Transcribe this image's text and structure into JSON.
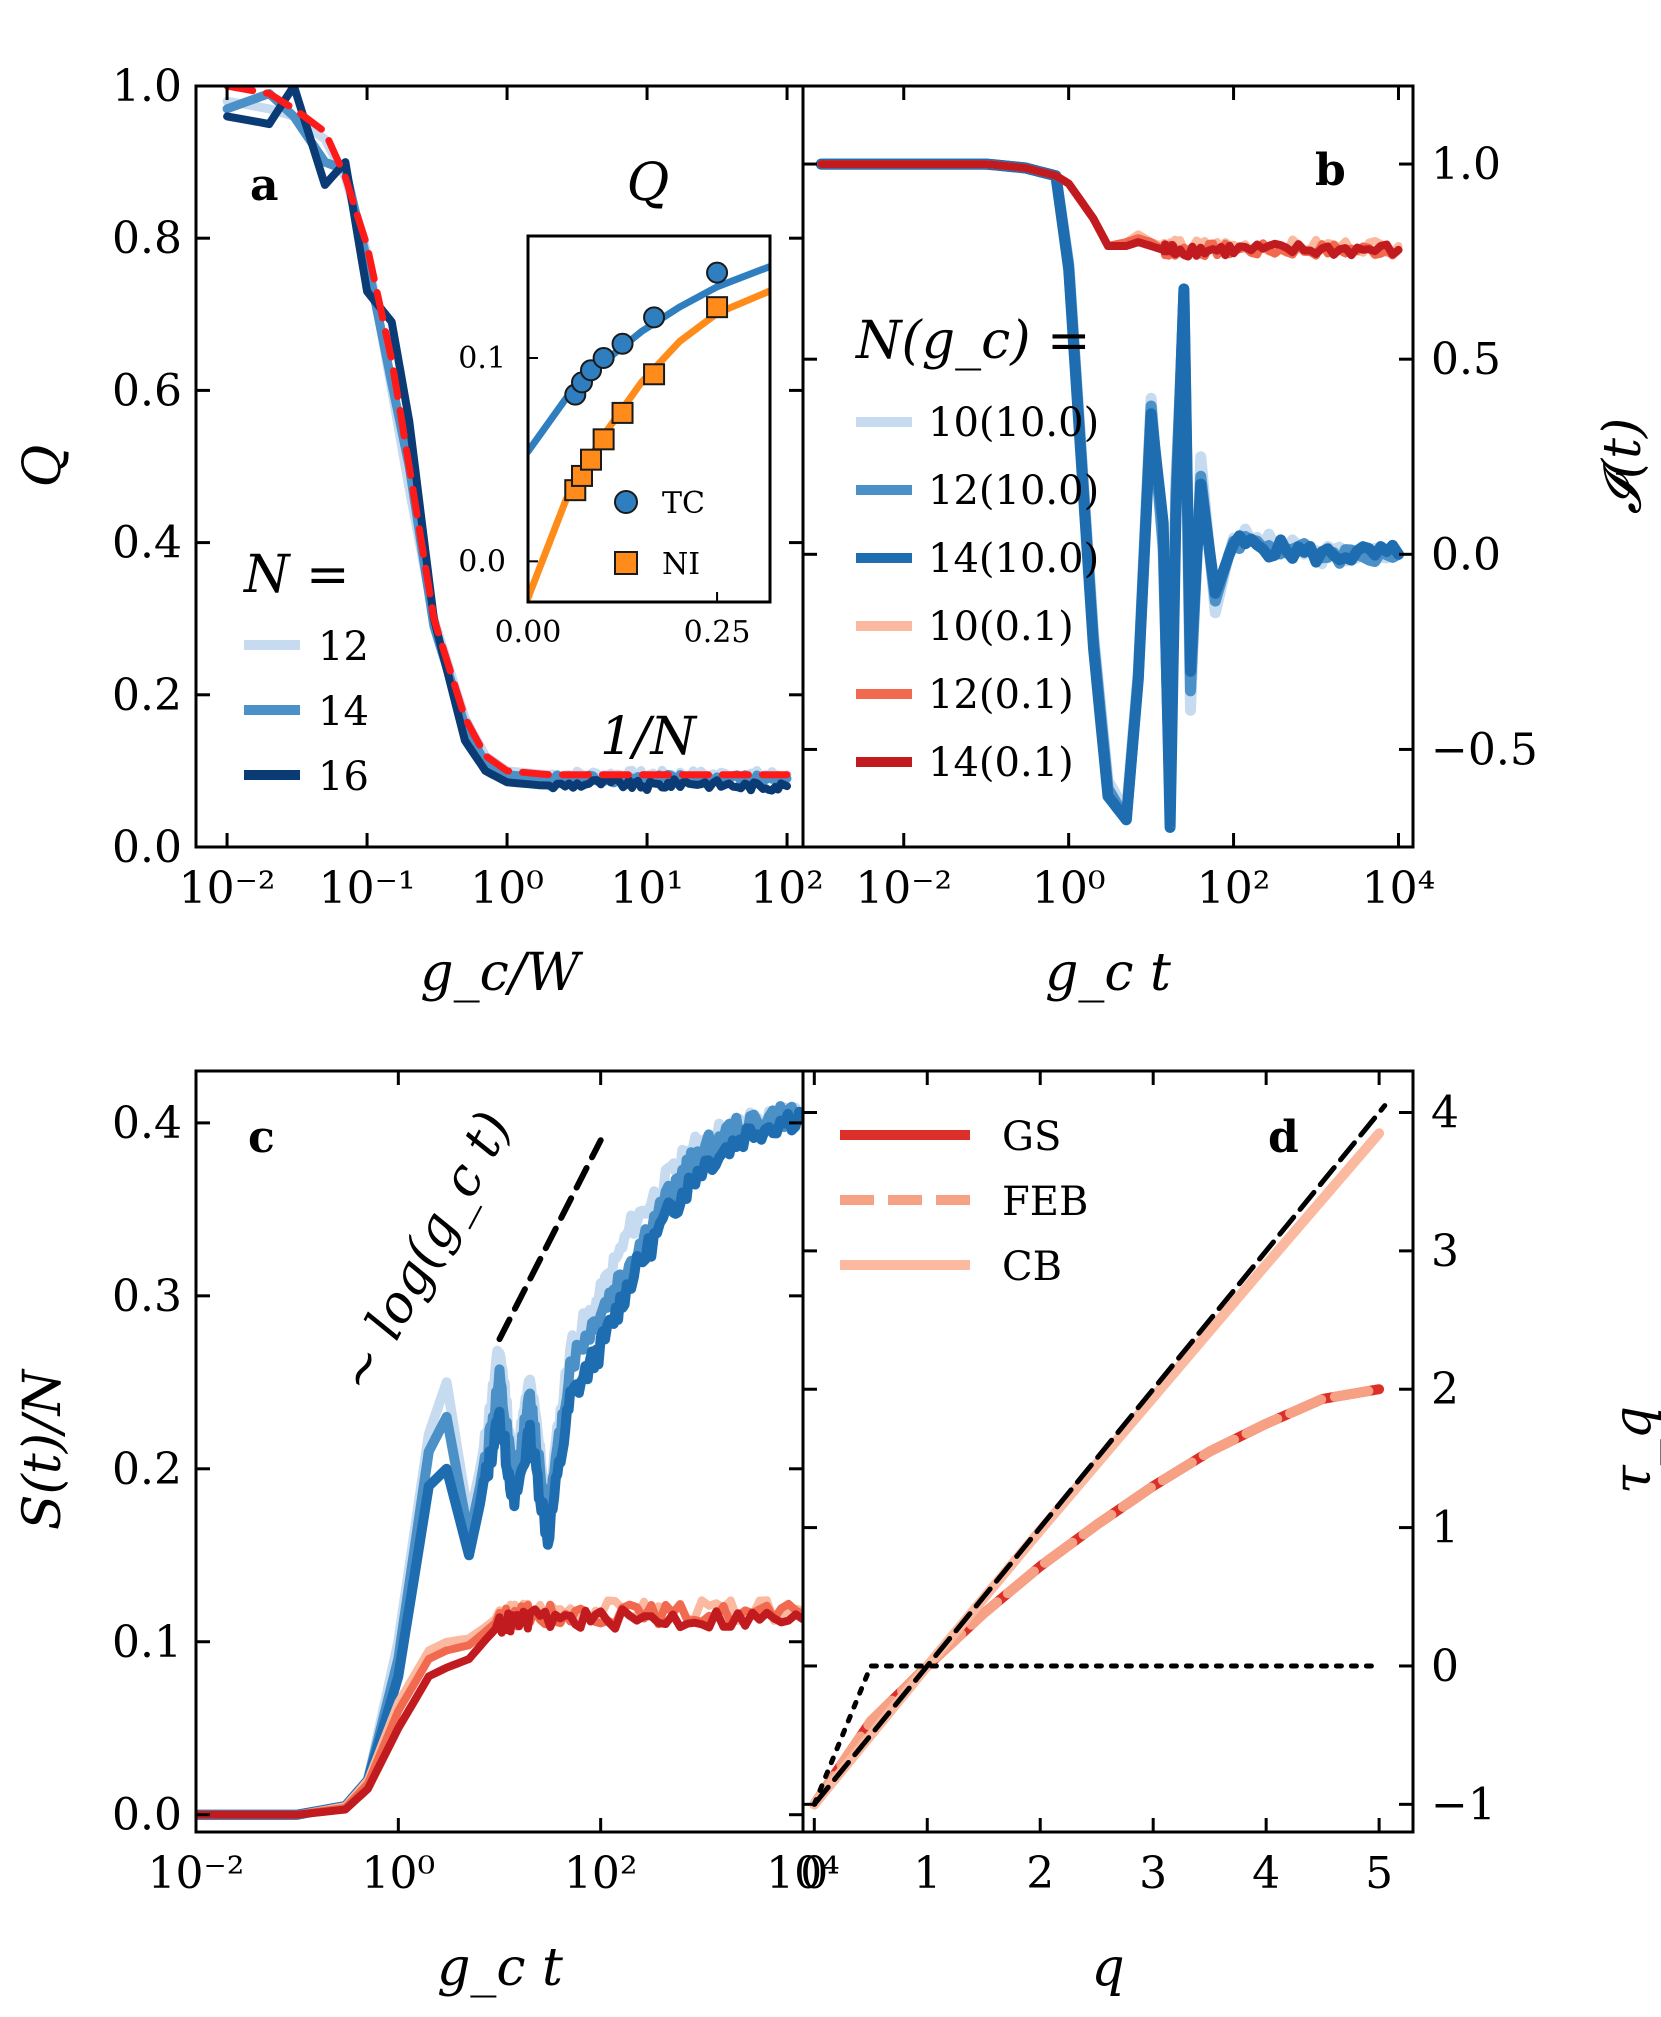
{
  "colors": {
    "blue_light": "#c6dbef",
    "blue_mid": "#4b91c7",
    "blue_dark": "#1f6db1",
    "navy": "#0b3b75",
    "red_dashed": "#ff1a1a",
    "peach": "#fbb9a0",
    "salmon": "#f1694f",
    "dark_red": "#c21b1f",
    "ni_orange": "#ff8c1a",
    "tc_blue": "#2f7fc0",
    "gs_red": "#dc2f2a",
    "feb_peach": "#f7a184",
    "black": "#000000"
  },
  "panels": {
    "a": {
      "letter": "a",
      "xlabel": "g_c/W",
      "ylabel": "Q",
      "xticks": [
        "10⁻²",
        "10⁻¹",
        "10⁰",
        "10¹",
        "10²"
      ],
      "yticks": [
        "0.0",
        "0.2",
        "0.4",
        "0.6",
        "0.8",
        "1.0"
      ],
      "legend_title": "N =",
      "legend": [
        "12",
        "14",
        "16"
      ],
      "inset": {
        "title": "Q",
        "xlabel": "1/N",
        "xticks": [
          "0.00",
          "0.25"
        ],
        "yticks": [
          "0.0",
          "0.1"
        ],
        "legend": [
          "TC",
          "NI"
        ]
      }
    },
    "b": {
      "letter": "b",
      "xlabel": "g_c t",
      "ylabel": "𝓘(t)",
      "xticks": [
        "10⁻²",
        "10⁰",
        "10²",
        "10⁴"
      ],
      "yticks": [
        "−0.5",
        "0.0",
        "0.5",
        "1.0"
      ],
      "legend_title": "N(g_c) =",
      "legend": [
        "10(10.0)",
        "12(10.0)",
        "14(10.0)",
        "10(0.1)",
        "12(0.1)",
        "14(0.1)"
      ]
    },
    "c": {
      "letter": "c",
      "xlabel": "g_c t",
      "ylabel": "S(t)/N",
      "xticks": [
        "10⁻²",
        "10⁰",
        "10²",
        "10⁴"
      ],
      "yticks": [
        "0.0",
        "0.1",
        "0.2",
        "0.3",
        "0.4"
      ],
      "annotation": "∼ log(g_c t)"
    },
    "d": {
      "letter": "d",
      "xlabel": "q",
      "ylabel": "τ_q",
      "xticks": [
        "0",
        "1",
        "2",
        "3",
        "4",
        "5"
      ],
      "yticks": [
        "−1",
        "0",
        "1",
        "2",
        "3",
        "4"
      ],
      "legend": [
        "GS",
        "FEB",
        "CB"
      ]
    }
  },
  "chart_data": [
    {
      "panel": "a",
      "type": "line",
      "xscale": "log",
      "xlim": [
        0.006,
        130
      ],
      "ylim": [
        0.0,
        1.0
      ],
      "xlabel": "g_c/W",
      "ylabel": "Q",
      "x": [
        0.01,
        0.02,
        0.03,
        0.05,
        0.07,
        0.1,
        0.15,
        0.2,
        0.3,
        0.5,
        0.7,
        1.0,
        2.0,
        5.0,
        10.0,
        20.0,
        50.0,
        100.0
      ],
      "series": [
        {
          "name": "12",
          "values": [
            0.98,
            0.97,
            0.96,
            0.93,
            0.88,
            0.78,
            0.6,
            0.47,
            0.3,
            0.17,
            0.12,
            0.1,
            0.095,
            0.095,
            0.095,
            0.095,
            0.095,
            0.095
          ]
        },
        {
          "name": "14",
          "values": [
            0.97,
            0.99,
            0.96,
            0.9,
            0.89,
            0.77,
            0.61,
            0.5,
            0.29,
            0.16,
            0.11,
            0.095,
            0.09,
            0.09,
            0.09,
            0.09,
            0.09,
            0.09
          ]
        },
        {
          "name": "16",
          "values": [
            0.96,
            0.95,
            1.0,
            0.87,
            0.9,
            0.73,
            0.69,
            0.56,
            0.3,
            0.14,
            0.1,
            0.085,
            0.08,
            0.085,
            0.08,
            0.085,
            0.08,
            0.08
          ]
        },
        {
          "name": "",
          "values": [
            1.0,
            0.99,
            0.97,
            0.94,
            0.88,
            0.79,
            0.64,
            0.5,
            0.3,
            0.17,
            0.12,
            0.1,
            0.095,
            0.095,
            0.095,
            0.095,
            0.095,
            0.095
          ]
        }
      ],
      "inset": {
        "type": "scatter",
        "xlim": [
          0.0,
          0.32
        ],
        "ylim": [
          -0.02,
          0.16
        ],
        "xlabel": "1/N",
        "series": [
          {
            "name": "TC",
            "x": [
              0.0625,
              0.0714,
              0.0833,
              0.1,
              0.125,
              0.1667,
              0.25
            ],
            "y": [
              0.082,
              0.088,
              0.094,
              0.1,
              0.107,
              0.12,
              0.142
            ],
            "fit": {
              "x": [
                0.0,
                0.05,
                0.1,
                0.15,
                0.2,
                0.25,
                0.32
              ],
              "y": [
                0.054,
                0.08,
                0.098,
                0.113,
                0.125,
                0.135,
                0.145
              ]
            }
          },
          {
            "name": "NI",
            "x": [
              0.0625,
              0.0714,
              0.0833,
              0.1,
              0.125,
              0.1667,
              0.25
            ],
            "y": [
              0.035,
              0.042,
              0.05,
              0.06,
              0.073,
              0.092,
              0.125
            ],
            "fit": {
              "x": [
                0.0,
                0.05,
                0.1,
                0.15,
                0.2,
                0.25,
                0.32
              ],
              "y": [
                -0.018,
                0.03,
                0.062,
                0.088,
                0.108,
                0.122,
                0.133
              ]
            }
          }
        ]
      }
    },
    {
      "panel": "b",
      "type": "line",
      "xscale": "log",
      "xlim": [
        0.0006,
        15000
      ],
      "ylim": [
        -0.75,
        1.2
      ],
      "xlabel": "g_c t",
      "ylabel": "𝓘(t)",
      "series": [
        {
          "name": "10(10.0)",
          "x": [
            0.001,
            0.01,
            0.1,
            0.3,
            0.7,
            1.0,
            2.0,
            3.0,
            5.0,
            7.0,
            10.0,
            14.0,
            17.0,
            20.0,
            25.0,
            30.0,
            40.0,
            60.0,
            100.0,
            1000.0,
            10000.0
          ],
          "y": [
            1.0,
            1.0,
            1.0,
            0.99,
            0.97,
            0.75,
            -0.2,
            -0.58,
            -0.66,
            -0.3,
            0.4,
            0.0,
            -0.6,
            0.2,
            0.6,
            -0.4,
            0.25,
            -0.15,
            0.05,
            0.0,
            0.0
          ]
        },
        {
          "name": "12(10.0)",
          "x": [
            0.001,
            0.01,
            0.1,
            0.3,
            0.7,
            1.0,
            2.0,
            3.0,
            5.0,
            7.0,
            10.0,
            14.0,
            17.0,
            20.0,
            25.0,
            30.0,
            40.0,
            60.0,
            100.0,
            1000.0,
            10000.0
          ],
          "y": [
            1.0,
            1.0,
            1.0,
            0.99,
            0.97,
            0.74,
            -0.22,
            -0.6,
            -0.68,
            -0.31,
            0.38,
            0.02,
            -0.64,
            0.15,
            0.67,
            -0.35,
            0.2,
            -0.12,
            0.04,
            0.0,
            0.0
          ]
        },
        {
          "name": "14(10.0)",
          "x": [
            0.001,
            0.01,
            0.1,
            0.3,
            0.7,
            1.0,
            2.0,
            3.0,
            5.0,
            7.0,
            10.0,
            14.0,
            17.0,
            20.0,
            25.0,
            30.0,
            40.0,
            60.0,
            100.0,
            1000.0,
            10000.0
          ],
          "y": [
            1.0,
            1.0,
            1.0,
            0.99,
            0.97,
            0.73,
            -0.24,
            -0.62,
            -0.68,
            -0.32,
            0.36,
            0.08,
            -0.7,
            0.1,
            0.68,
            -0.3,
            0.18,
            -0.1,
            0.03,
            0.0,
            0.0
          ]
        },
        {
          "name": "10(0.1)",
          "x": [
            0.001,
            0.01,
            0.1,
            0.3,
            0.7,
            1.0,
            2.0,
            3.0,
            5.0,
            7.0,
            10.0,
            14.0,
            20.0,
            100.0,
            1000.0,
            10000.0
          ],
          "y": [
            1.0,
            1.0,
            1.0,
            0.99,
            0.97,
            0.95,
            0.86,
            0.79,
            0.8,
            0.82,
            0.8,
            0.79,
            0.79,
            0.79,
            0.79,
            0.79
          ]
        },
        {
          "name": "12(0.1)",
          "x": [
            0.001,
            0.01,
            0.1,
            0.3,
            0.7,
            1.0,
            2.0,
            3.0,
            5.0,
            7.0,
            10.0,
            14.0,
            20.0,
            100.0,
            1000.0,
            10000.0
          ],
          "y": [
            1.0,
            1.0,
            1.0,
            0.99,
            0.97,
            0.95,
            0.86,
            0.79,
            0.8,
            0.81,
            0.8,
            0.78,
            0.78,
            0.78,
            0.78,
            0.78
          ]
        },
        {
          "name": "14(0.1)",
          "x": [
            0.001,
            0.01,
            0.1,
            0.3,
            0.7,
            1.0,
            2.0,
            3.0,
            5.0,
            7.0,
            10.0,
            14.0,
            20.0,
            100.0,
            1000.0,
            10000.0
          ],
          "y": [
            1.0,
            1.0,
            1.0,
            0.99,
            0.97,
            0.95,
            0.86,
            0.79,
            0.79,
            0.8,
            0.79,
            0.78,
            0.78,
            0.78,
            0.78,
            0.78
          ]
        }
      ]
    },
    {
      "panel": "c",
      "type": "line",
      "xscale": "log",
      "xlim": [
        0.01,
        10000
      ],
      "ylim": [
        -0.01,
        0.43
      ],
      "xlabel": "g_c t",
      "ylabel": "S(t)/N",
      "series": [
        {
          "name": "10(10.0)",
          "x": [
            0.01,
            0.1,
            0.3,
            0.5,
            1.0,
            2.0,
            3.0,
            5.0,
            7.0,
            10.0,
            14.0,
            20.0,
            30.0,
            50.0,
            100.0,
            200.0,
            500.0,
            1000.0,
            3000.0,
            10000.0
          ],
          "y": [
            0.0,
            0.0,
            0.005,
            0.02,
            0.1,
            0.22,
            0.25,
            0.17,
            0.21,
            0.27,
            0.2,
            0.25,
            0.18,
            0.27,
            0.3,
            0.34,
            0.37,
            0.39,
            0.4,
            0.405
          ]
        },
        {
          "name": "12(10.0)",
          "x": [
            0.01,
            0.1,
            0.3,
            0.5,
            1.0,
            2.0,
            3.0,
            5.0,
            7.0,
            10.0,
            14.0,
            20.0,
            30.0,
            50.0,
            100.0,
            200.0,
            500.0,
            1000.0,
            3000.0,
            10000.0
          ],
          "y": [
            0.0,
            0.0,
            0.005,
            0.02,
            0.09,
            0.21,
            0.23,
            0.16,
            0.2,
            0.25,
            0.19,
            0.24,
            0.17,
            0.26,
            0.29,
            0.32,
            0.36,
            0.385,
            0.4,
            0.405
          ]
        },
        {
          "name": "14(10.0)",
          "x": [
            0.01,
            0.1,
            0.3,
            0.5,
            1.0,
            2.0,
            3.0,
            5.0,
            7.0,
            10.0,
            14.0,
            20.0,
            30.0,
            50.0,
            100.0,
            200.0,
            500.0,
            1000.0,
            3000.0,
            10000.0
          ],
          "y": [
            0.0,
            0.0,
            0.005,
            0.02,
            0.08,
            0.19,
            0.2,
            0.15,
            0.19,
            0.23,
            0.18,
            0.22,
            0.16,
            0.24,
            0.27,
            0.31,
            0.35,
            0.375,
            0.395,
            0.405
          ]
        },
        {
          "name": "10(0.1)",
          "x": [
            0.01,
            0.1,
            0.3,
            0.5,
            1.0,
            2.0,
            3.0,
            5.0,
            7.0,
            10.0,
            20.0,
            100.0,
            1000.0,
            10000.0
          ],
          "y": [
            0.0,
            0.0,
            0.005,
            0.02,
            0.065,
            0.095,
            0.1,
            0.102,
            0.108,
            0.115,
            0.118,
            0.118,
            0.118,
            0.118
          ]
        },
        {
          "name": "12(0.1)",
          "x": [
            0.01,
            0.1,
            0.3,
            0.5,
            1.0,
            2.0,
            3.0,
            5.0,
            7.0,
            10.0,
            20.0,
            100.0,
            1000.0,
            10000.0
          ],
          "y": [
            0.0,
            0.0,
            0.004,
            0.018,
            0.06,
            0.09,
            0.095,
            0.098,
            0.105,
            0.113,
            0.116,
            0.116,
            0.116,
            0.116
          ]
        },
        {
          "name": "14(0.1)",
          "x": [
            0.01,
            0.1,
            0.3,
            0.5,
            1.0,
            2.0,
            3.0,
            5.0,
            7.0,
            10.0,
            20.0,
            100.0,
            1000.0,
            10000.0
          ],
          "y": [
            0.0,
            0.0,
            0.003,
            0.015,
            0.05,
            0.08,
            0.085,
            0.09,
            0.1,
            0.11,
            0.113,
            0.113,
            0.113,
            0.113
          ]
        },
        {
          "name": "",
          "x": [
            10.0,
            100.0
          ],
          "y": [
            0.275,
            0.39
          ]
        }
      ]
    },
    {
      "panel": "d",
      "type": "line",
      "xlim": [
        -0.1,
        5.3
      ],
      "ylim": [
        -1.2,
        4.3
      ],
      "xlabel": "q",
      "ylabel": "τ_q",
      "series": [
        {
          "name": "GS",
          "x": [
            0.0,
            0.5,
            1.0,
            1.5,
            2.0,
            2.5,
            3.0,
            3.5,
            4.0,
            4.5,
            5.0
          ],
          "y": [
            -1.0,
            -0.4,
            0.0,
            0.38,
            0.72,
            1.02,
            1.3,
            1.55,
            1.75,
            1.93,
            2.0
          ]
        },
        {
          "name": "FEB",
          "x": [
            0.0,
            0.5,
            1.0,
            1.5,
            2.0,
            2.5,
            3.0,
            3.5,
            4.0,
            4.5,
            5.0
          ],
          "y": [
            -1.0,
            -0.4,
            0.0,
            0.38,
            0.72,
            1.02,
            1.3,
            1.55,
            1.75,
            1.93,
            2.0
          ]
        },
        {
          "name": "CB",
          "x": [
            0.0,
            1.0,
            2.0,
            3.0,
            4.0,
            5.0
          ],
          "y": [
            -1.0,
            0.0,
            0.98,
            1.94,
            2.9,
            3.85
          ]
        },
        {
          "name": "",
          "x": [
            0.0,
            5.05
          ],
          "y": [
            -1.0,
            4.05
          ]
        },
        {
          "name": "",
          "x": [
            0.0,
            0.5,
            5.0
          ],
          "y": [
            -1.0,
            0.0,
            0.0
          ]
        }
      ]
    }
  ]
}
